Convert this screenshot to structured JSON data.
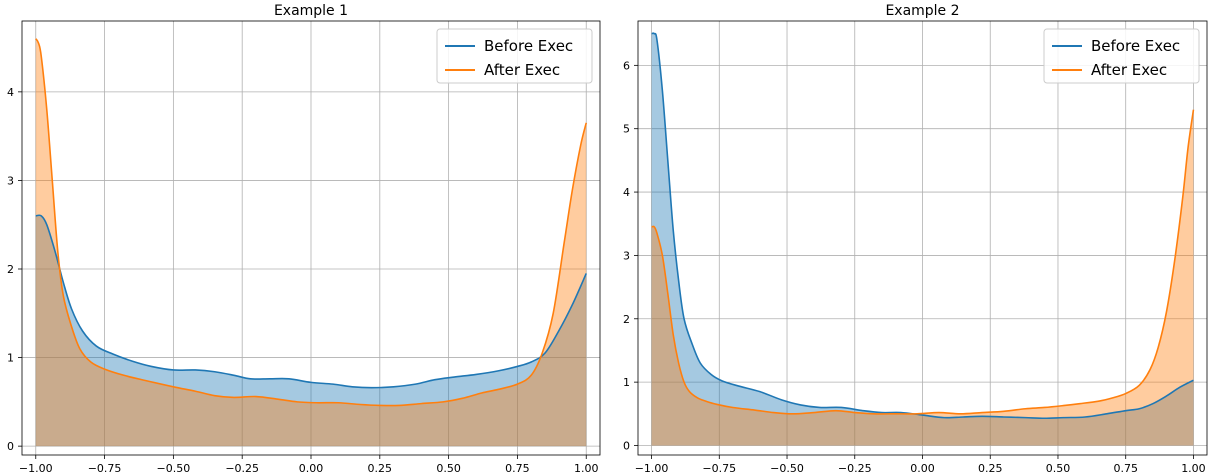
{
  "chart_data": [
    {
      "type": "area",
      "title": "Example 1",
      "xlabel": "",
      "ylabel": "",
      "xlim": [
        -1.05,
        1.05
      ],
      "ylim": [
        -0.1,
        4.8
      ],
      "xticks": [
        -1.0,
        -0.75,
        -0.5,
        -0.25,
        0.0,
        0.25,
        0.5,
        0.75,
        1.0
      ],
      "xtick_labels": [
        "−1.00",
        "−0.75",
        "−0.50",
        "−0.25",
        "0.00",
        "0.25",
        "0.50",
        "0.75",
        "1.00"
      ],
      "yticks": [
        0,
        1,
        2,
        3,
        4
      ],
      "ytick_labels": [
        "0",
        "1",
        "2",
        "3",
        "4"
      ],
      "grid": true,
      "legend_position": "top-right",
      "series": [
        {
          "name": "Before Exec",
          "color": "#1f77b4",
          "fill": "#1f77b4",
          "x": [
            -1.0,
            -0.98,
            -0.96,
            -0.93,
            -0.9,
            -0.87,
            -0.83,
            -0.78,
            -0.72,
            -0.65,
            -0.58,
            -0.5,
            -0.42,
            -0.35,
            -0.28,
            -0.22,
            -0.15,
            -0.08,
            0.0,
            0.08,
            0.15,
            0.22,
            0.3,
            0.38,
            0.45,
            0.52,
            0.6,
            0.68,
            0.75,
            0.8,
            0.85,
            0.9,
            0.95,
            1.0
          ],
          "y": [
            2.6,
            2.6,
            2.5,
            2.2,
            1.85,
            1.55,
            1.3,
            1.13,
            1.04,
            0.96,
            0.9,
            0.86,
            0.86,
            0.84,
            0.8,
            0.76,
            0.76,
            0.76,
            0.72,
            0.7,
            0.67,
            0.66,
            0.67,
            0.7,
            0.75,
            0.78,
            0.81,
            0.85,
            0.9,
            0.95,
            1.05,
            1.3,
            1.6,
            1.95
          ]
        },
        {
          "name": "After Exec",
          "color": "#ff7f0e",
          "fill": "#ff7f0e",
          "x": [
            -1.0,
            -0.99,
            -0.98,
            -0.96,
            -0.94,
            -0.92,
            -0.9,
            -0.87,
            -0.84,
            -0.8,
            -0.75,
            -0.68,
            -0.6,
            -0.5,
            -0.42,
            -0.35,
            -0.28,
            -0.2,
            -0.12,
            -0.05,
            0.02,
            0.1,
            0.18,
            0.25,
            0.32,
            0.4,
            0.48,
            0.55,
            0.62,
            0.68,
            0.75,
            0.8,
            0.84,
            0.88,
            0.92,
            0.95,
            0.98,
            1.0
          ],
          "y": [
            4.6,
            4.55,
            4.4,
            3.8,
            3.0,
            2.2,
            1.7,
            1.35,
            1.1,
            0.95,
            0.87,
            0.8,
            0.74,
            0.67,
            0.62,
            0.57,
            0.55,
            0.56,
            0.53,
            0.5,
            0.49,
            0.49,
            0.47,
            0.46,
            0.46,
            0.48,
            0.5,
            0.54,
            0.6,
            0.64,
            0.7,
            0.8,
            1.05,
            1.5,
            2.3,
            2.9,
            3.4,
            3.65
          ]
        }
      ]
    },
    {
      "type": "area",
      "title": "Example 2",
      "xlabel": "",
      "ylabel": "",
      "xlim": [
        -1.05,
        1.05
      ],
      "ylim": [
        -0.15,
        6.7
      ],
      "xticks": [
        -1.0,
        -0.75,
        -0.5,
        -0.25,
        0.0,
        0.25,
        0.5,
        0.75,
        1.0
      ],
      "xtick_labels": [
        "−1.00",
        "−0.75",
        "−0.50",
        "−0.25",
        "0.00",
        "0.25",
        "0.50",
        "0.75",
        "1.00"
      ],
      "yticks": [
        0,
        1,
        2,
        3,
        4,
        5,
        6
      ],
      "ytick_labels": [
        "0",
        "1",
        "2",
        "3",
        "4",
        "5",
        "6"
      ],
      "grid": true,
      "legend_position": "top-right",
      "series": [
        {
          "name": "Before Exec",
          "color": "#1f77b4",
          "fill": "#1f77b4",
          "x": [
            -1.0,
            -0.99,
            -0.98,
            -0.96,
            -0.94,
            -0.92,
            -0.9,
            -0.88,
            -0.85,
            -0.82,
            -0.78,
            -0.74,
            -0.68,
            -0.6,
            -0.52,
            -0.45,
            -0.38,
            -0.3,
            -0.22,
            -0.15,
            -0.08,
            0.0,
            0.08,
            0.15,
            0.22,
            0.3,
            0.38,
            0.45,
            0.52,
            0.6,
            0.68,
            0.75,
            0.8,
            0.85,
            0.9,
            0.95,
            1.0
          ],
          "y": [
            6.5,
            6.5,
            6.4,
            5.6,
            4.5,
            3.4,
            2.6,
            2.0,
            1.6,
            1.3,
            1.12,
            1.02,
            0.94,
            0.85,
            0.72,
            0.64,
            0.6,
            0.6,
            0.55,
            0.52,
            0.52,
            0.48,
            0.44,
            0.45,
            0.46,
            0.45,
            0.44,
            0.43,
            0.44,
            0.45,
            0.5,
            0.55,
            0.58,
            0.66,
            0.78,
            0.92,
            1.03
          ]
        },
        {
          "name": "After Exec",
          "color": "#ff7f0e",
          "fill": "#ff7f0e",
          "x": [
            -1.0,
            -0.99,
            -0.98,
            -0.96,
            -0.94,
            -0.92,
            -0.9,
            -0.88,
            -0.86,
            -0.83,
            -0.8,
            -0.76,
            -0.7,
            -0.62,
            -0.55,
            -0.48,
            -0.4,
            -0.32,
            -0.25,
            -0.18,
            -0.1,
            -0.02,
            0.06,
            0.14,
            0.22,
            0.3,
            0.38,
            0.45,
            0.52,
            0.58,
            0.65,
            0.7,
            0.75,
            0.8,
            0.84,
            0.87,
            0.9,
            0.93,
            0.96,
            0.98,
            1.0
          ],
          "y": [
            3.45,
            3.45,
            3.35,
            3.0,
            2.4,
            1.75,
            1.3,
            1.0,
            0.85,
            0.75,
            0.7,
            0.65,
            0.6,
            0.56,
            0.52,
            0.5,
            0.52,
            0.55,
            0.52,
            0.5,
            0.5,
            0.5,
            0.52,
            0.5,
            0.52,
            0.54,
            0.58,
            0.6,
            0.63,
            0.66,
            0.7,
            0.75,
            0.82,
            0.95,
            1.2,
            1.55,
            2.1,
            2.9,
            3.9,
            4.7,
            5.3
          ]
        }
      ]
    }
  ]
}
